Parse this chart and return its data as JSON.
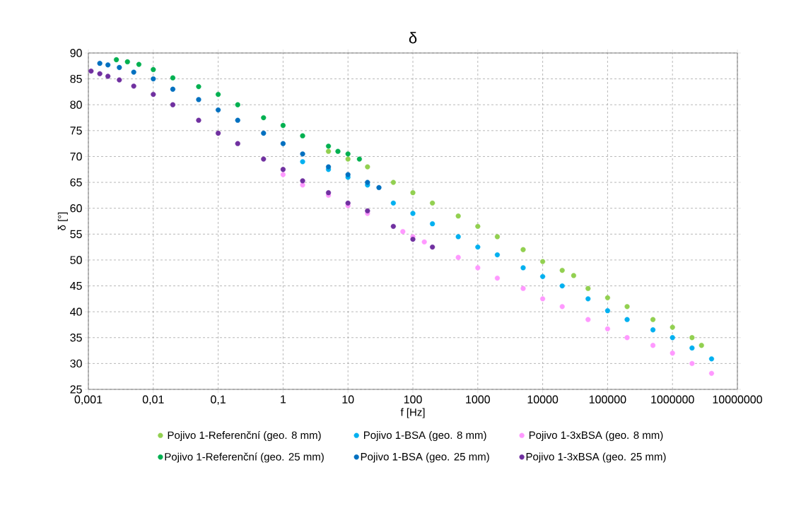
{
  "chart_data": {
    "type": "scatter",
    "title": "δ",
    "xlabel": "f [Hz]",
    "ylabel": "δ [°]",
    "log": "x",
    "grid": true,
    "legend": "bottom",
    "marker": "circle",
    "xlim": [
      0.001,
      10000000
    ],
    "ylim": [
      25,
      90
    ],
    "xticks": [
      {
        "value": 0.001,
        "label": "0,001"
      },
      {
        "value": 0.01,
        "label": "0,01"
      },
      {
        "value": 0.1,
        "label": "0,1"
      },
      1,
      10,
      100,
      1000,
      10000,
      100000,
      1000000,
      10000000
    ],
    "yticks": [
      25,
      30,
      35,
      40,
      45,
      50,
      55,
      60,
      65,
      70,
      75,
      80,
      85,
      90
    ],
    "series": [
      {
        "name": "Pojivo 1-Referenční (geo. 8 mm)",
        "color": "#92d050",
        "x": [
          5,
          10,
          20,
          50,
          100,
          200,
          500,
          1000,
          2000,
          5000,
          10000,
          20000,
          30000,
          50000,
          100000,
          200000,
          500000,
          1000000,
          2000000,
          2800000
        ],
        "values": [
          71,
          69.5,
          68,
          65,
          63,
          61,
          58.5,
          56.5,
          54.5,
          52,
          49.7,
          48,
          47,
          44.5,
          42.7,
          41,
          38.5,
          37,
          35,
          33.5
        ]
      },
      {
        "name": "Pojivo 1-BSA (geo. 8 mm)",
        "color": "#00b0f0",
        "x": [
          2,
          5,
          10,
          20,
          50,
          100,
          200,
          500,
          1000,
          2000,
          5000,
          10000,
          20000,
          50000,
          100000,
          200000,
          500000,
          1000000,
          2000000,
          4000000
        ],
        "values": [
          69,
          67.5,
          66,
          64.5,
          61,
          59,
          57,
          54.5,
          52.5,
          51,
          48.5,
          46.8,
          45,
          42.5,
          40.2,
          38.5,
          36.5,
          35,
          33,
          30.9
        ]
      },
      {
        "name": "Pojivo 1-3xBSA (geo. 8 mm)",
        "color": "#ff99ff",
        "x": [
          1,
          2,
          5,
          10,
          20,
          70,
          100,
          150,
          500,
          1000,
          2000,
          5000,
          10000,
          20000,
          50000,
          100000,
          200000,
          500000,
          1000000,
          2000000,
          4000000
        ],
        "values": [
          66.5,
          64.5,
          62.5,
          60.5,
          59,
          55.5,
          54.5,
          53.5,
          50.5,
          48.5,
          46.5,
          44.5,
          42.5,
          41,
          38.5,
          36.7,
          35,
          33.5,
          32,
          30,
          28.1
        ]
      },
      {
        "name": "Pojivo 1-Referenční (geo. 25 mm)",
        "color": "#00b050",
        "x": [
          0.0027,
          0.004,
          0.006,
          0.01,
          0.02,
          0.05,
          0.1,
          0.2,
          0.5,
          1,
          2,
          5,
          7,
          10,
          15
        ],
        "values": [
          88.7,
          88.3,
          87.8,
          86.8,
          85.2,
          83.5,
          82,
          80,
          77.5,
          76,
          74,
          72,
          71,
          70.5,
          69.5
        ]
      },
      {
        "name": "Pojivo 1-BSA (geo. 25 mm)",
        "color": "#0070c0",
        "x": [
          0.0015,
          0.002,
          0.003,
          0.005,
          0.01,
          0.02,
          0.05,
          0.1,
          0.2,
          0.5,
          1,
          2,
          5,
          10,
          20,
          30
        ],
        "values": [
          88,
          87.7,
          87.2,
          86.3,
          85,
          83,
          81,
          79,
          77,
          74.5,
          72.5,
          70.5,
          68,
          66.5,
          65,
          64
        ]
      },
      {
        "name": "Pojivo 1-3xBSA (geo. 25 mm)",
        "color": "#7030a0",
        "x": [
          0.0011,
          0.0015,
          0.002,
          0.003,
          0.005,
          0.01,
          0.02,
          0.05,
          0.1,
          0.2,
          0.5,
          1,
          2,
          5,
          10,
          20,
          50,
          100,
          200
        ],
        "values": [
          86.5,
          86,
          85.5,
          84.8,
          83.6,
          82,
          80,
          77,
          74.5,
          72.5,
          69.5,
          67.5,
          65.3,
          63,
          61,
          59.5,
          56.5,
          54,
          52.5
        ]
      }
    ]
  }
}
